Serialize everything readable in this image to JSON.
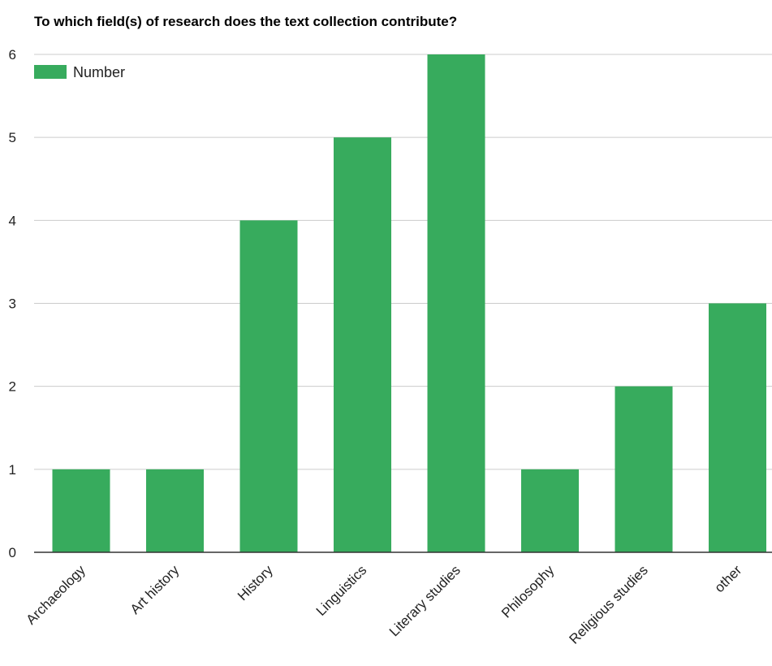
{
  "chart_data": {
    "type": "bar",
    "title": "To which field(s) of research does the text collection contribute?",
    "categories": [
      "Archaeology",
      "Art history",
      "History",
      "Linguistics",
      "Literary studies",
      "Philosophy",
      "Religious studies",
      "other"
    ],
    "series": [
      {
        "name": "Number",
        "values": [
          1,
          1,
          4,
          5,
          6,
          1,
          2,
          3
        ],
        "color": "#37ab5d"
      }
    ],
    "ylim": [
      0,
      6
    ],
    "yticks": [
      0,
      1,
      2,
      3,
      4,
      5,
      6
    ],
    "grid": true,
    "legend_position": "top-left"
  }
}
